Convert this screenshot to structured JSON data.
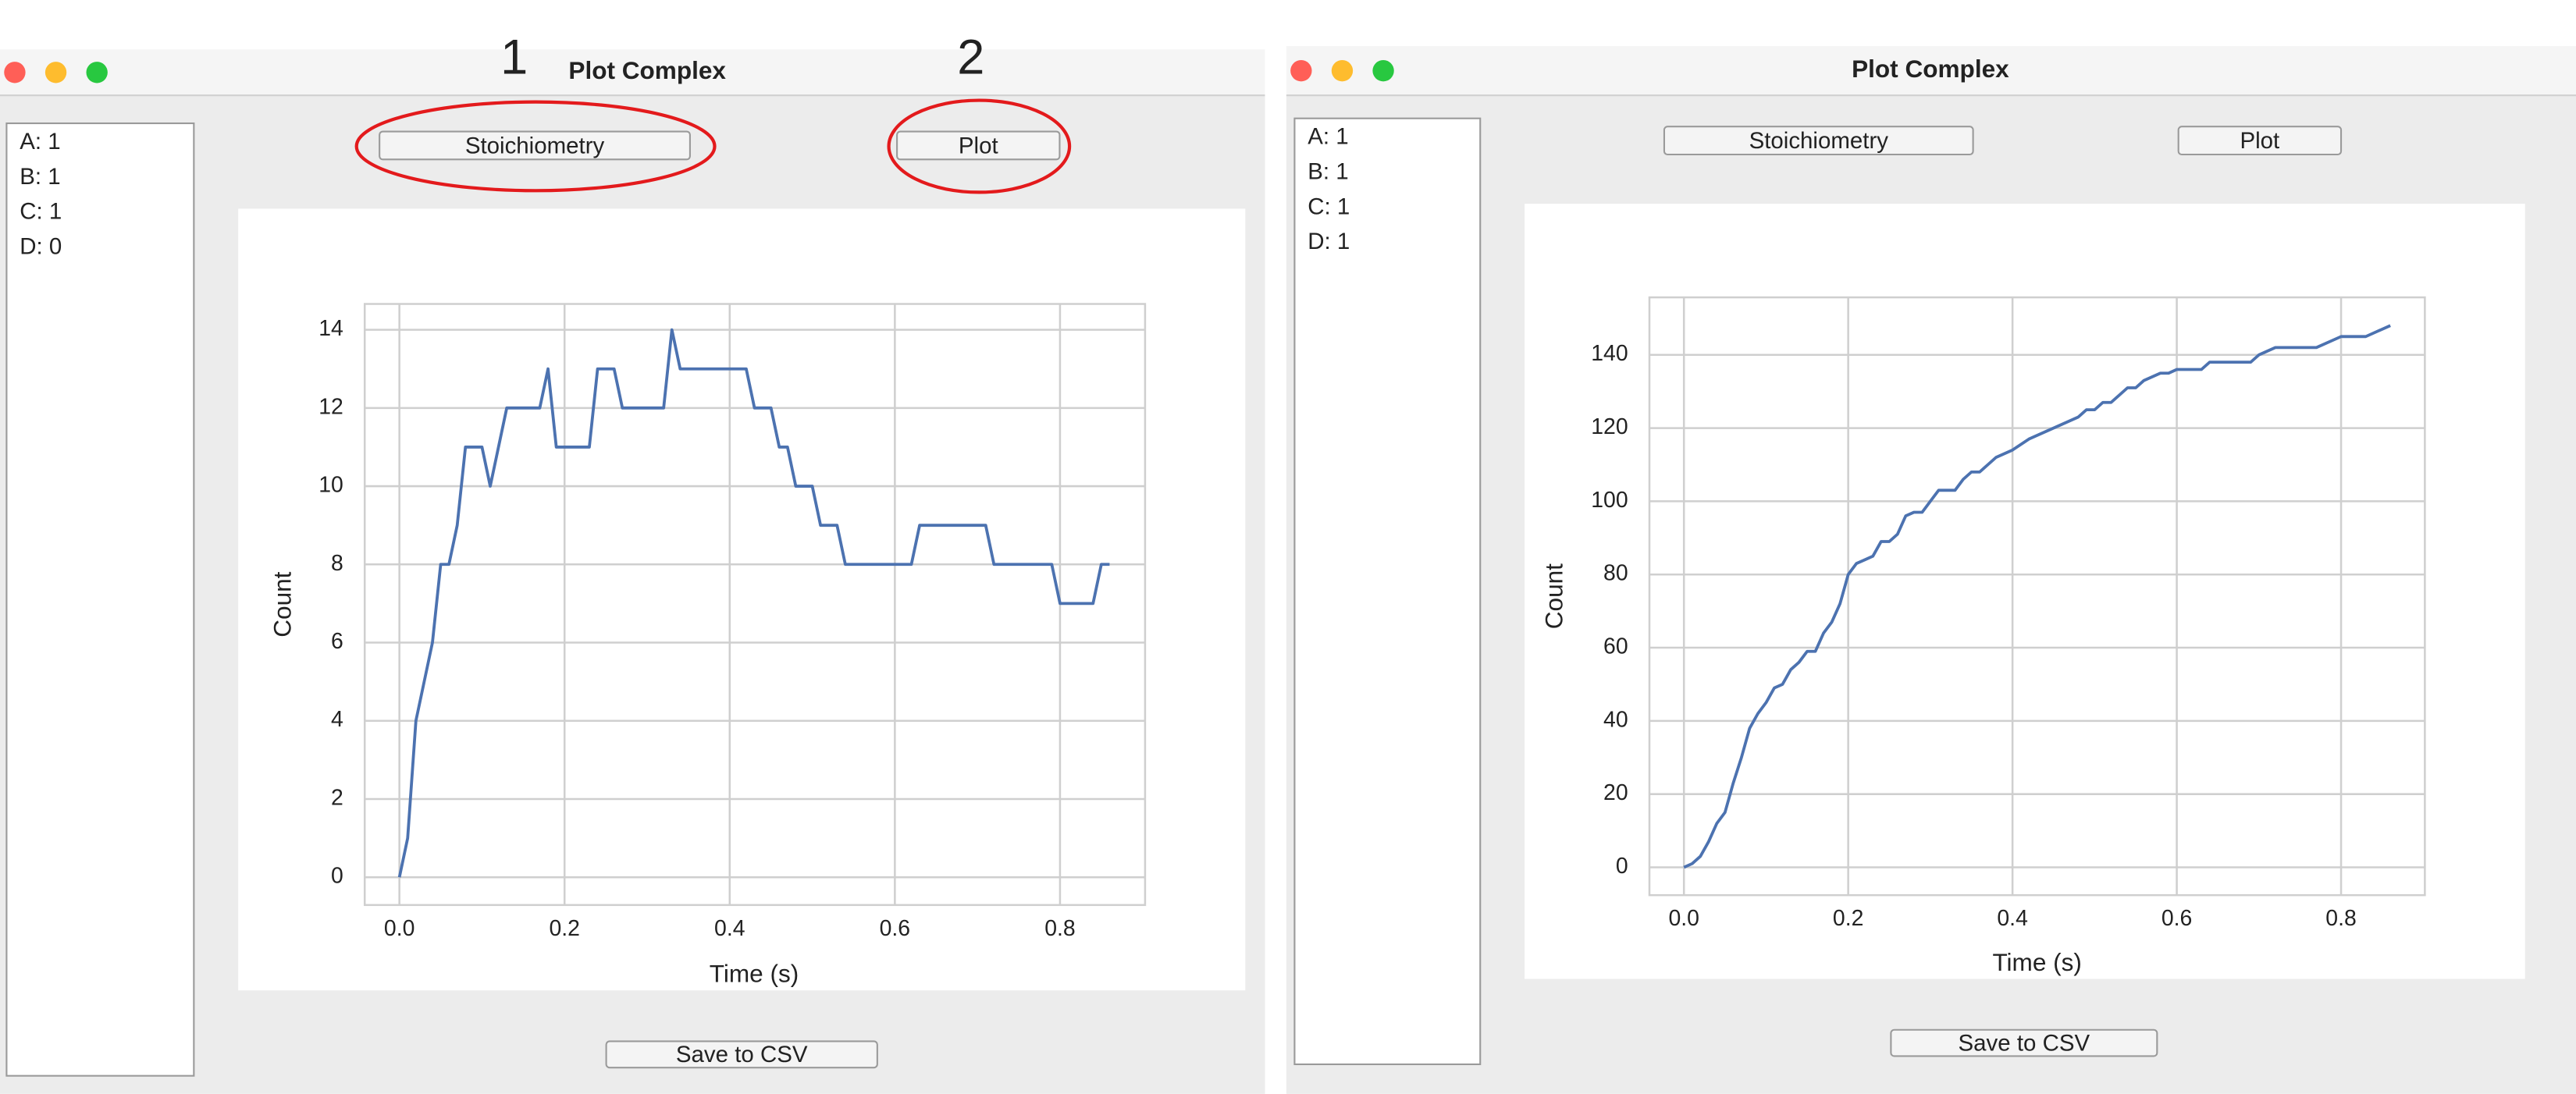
{
  "annotations": [
    "1",
    "2"
  ],
  "windows": [
    {
      "title": "Plot Complex",
      "list": [
        "A: 1",
        "B: 1",
        "C: 1",
        "D: 0"
      ],
      "buttons": [
        "Stoichiometry",
        "Plot"
      ],
      "save": "Save to CSV"
    },
    {
      "title": "Plot Complex",
      "list": [
        "A: 1",
        "B: 1",
        "C: 1",
        "D: 1"
      ],
      "buttons": [
        "Stoichiometry",
        "Plot"
      ],
      "save": "Save to CSV"
    }
  ],
  "chart_data": [
    {
      "type": "line",
      "x_label": "Time (s)",
      "y_label": "Count",
      "color": "#4c72b0",
      "grid": true,
      "x": [
        0,
        0.01,
        0.02,
        0.03,
        0.04,
        0.05,
        0.06,
        0.07,
        0.08,
        0.1,
        0.11,
        0.12,
        0.13,
        0.17,
        0.18,
        0.19,
        0.23,
        0.24,
        0.26,
        0.27,
        0.32,
        0.33,
        0.34,
        0.42,
        0.43,
        0.45,
        0.46,
        0.47,
        0.48,
        0.5,
        0.51,
        0.53,
        0.54,
        0.62,
        0.63,
        0.71,
        0.72,
        0.79,
        0.8,
        0.84,
        0.85,
        0.86
      ],
      "values": [
        0,
        1,
        4,
        5,
        6,
        8,
        8,
        9,
        11,
        11,
        10,
        11,
        12,
        12,
        13,
        11,
        11,
        13,
        13,
        12,
        12,
        14,
        13,
        13,
        12,
        12,
        11,
        11,
        10,
        10,
        9,
        9,
        8,
        8,
        9,
        9,
        8,
        8,
        7,
        7,
        8,
        8
      ],
      "xlim": [
        -0.042,
        0.903
      ],
      "ylim": [
        -0.71,
        14.66
      ],
      "xticks": [
        {
          "value": 0,
          "label": "0.0"
        },
        0.2,
        0.4,
        0.6,
        0.8
      ],
      "yticks": [
        0,
        2,
        4,
        6,
        8,
        10,
        12,
        14
      ]
    },
    {
      "type": "line",
      "x_label": "Time (s)",
      "y_label": "Count",
      "color": "#4c72b0",
      "grid": true,
      "x": [
        0,
        0.01,
        0.02,
        0.03,
        0.04,
        0.05,
        0.06,
        0.07,
        0.08,
        0.09,
        0.1,
        0.11,
        0.12,
        0.13,
        0.14,
        0.15,
        0.16,
        0.17,
        0.18,
        0.19,
        0.2,
        0.21,
        0.22,
        0.23,
        0.24,
        0.25,
        0.26,
        0.27,
        0.28,
        0.29,
        0.3,
        0.31,
        0.32,
        0.33,
        0.34,
        0.35,
        0.36,
        0.37,
        0.38,
        0.4,
        0.42,
        0.44,
        0.46,
        0.48,
        0.49,
        0.5,
        0.51,
        0.52,
        0.53,
        0.54,
        0.55,
        0.56,
        0.58,
        0.59,
        0.6,
        0.63,
        0.64,
        0.69,
        0.7,
        0.72,
        0.77,
        0.8,
        0.83,
        0.86
      ],
      "values": [
        0,
        1,
        3,
        7,
        12,
        15,
        23,
        30,
        38,
        42,
        45,
        49,
        50,
        54,
        56,
        59,
        59,
        64,
        67,
        72,
        80,
        83,
        84,
        85,
        89,
        89,
        91,
        96,
        97,
        97,
        100,
        103,
        103,
        103,
        106,
        108,
        108,
        110,
        112,
        114,
        117,
        119,
        121,
        123,
        125,
        125,
        127,
        127,
        129,
        131,
        131,
        133,
        135,
        135,
        136,
        136,
        138,
        138,
        140,
        142,
        142,
        145,
        145,
        148
      ],
      "xlim": [
        -0.042,
        0.902
      ],
      "ylim": [
        -7.6,
        155.7
      ],
      "xticks": [
        {
          "value": 0,
          "label": "0.0"
        },
        0.2,
        0.4,
        0.6,
        0.8
      ],
      "yticks": [
        0,
        20,
        40,
        60,
        80,
        100,
        120,
        140
      ]
    }
  ]
}
